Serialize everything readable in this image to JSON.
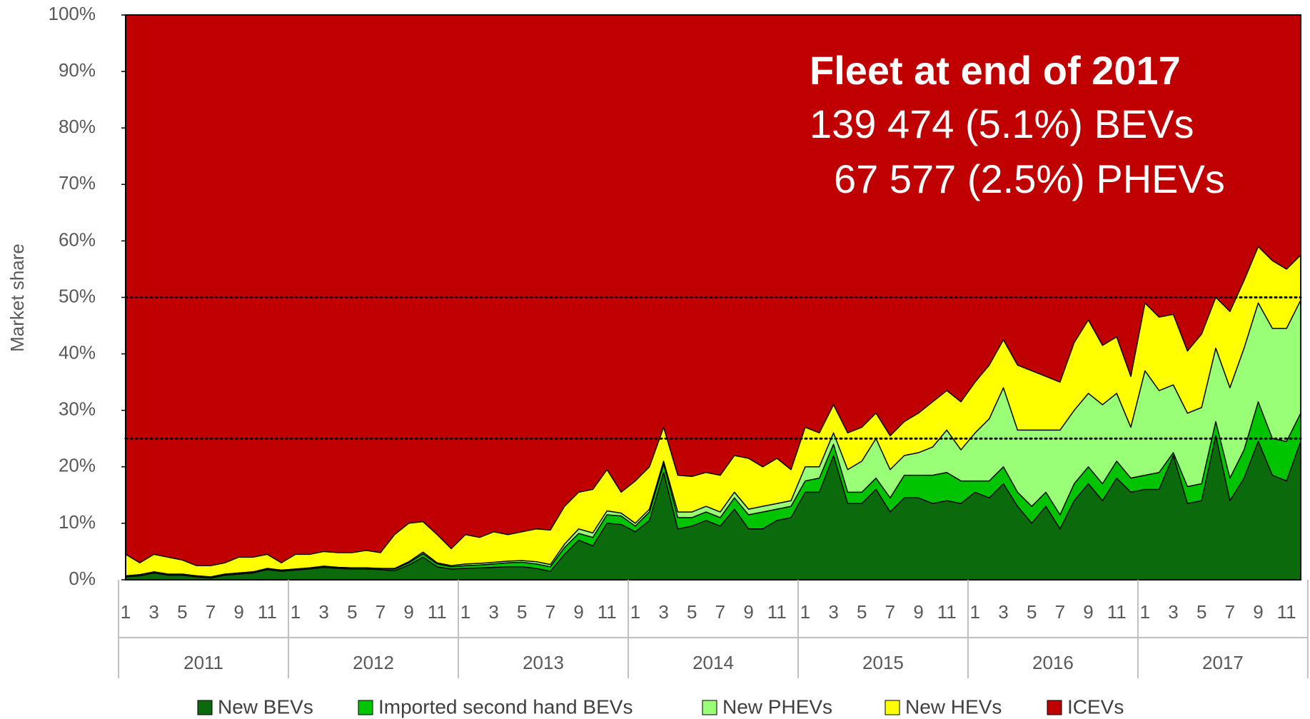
{
  "chart_data": {
    "type": "stacked_area",
    "y_label": "Market share",
    "annotation": {
      "title": "Fleet at end of 2017",
      "lines": [
        "139 474 (5.1%) BEVs",
        "67 577 (2.5%) PHEVs"
      ]
    },
    "categories": [
      "1",
      null,
      "3",
      null,
      "5",
      null,
      "7",
      null,
      "9",
      null,
      "11",
      null,
      "1",
      null,
      "3",
      null,
      "5",
      null,
      "7",
      null,
      "9",
      null,
      "11",
      null,
      "1",
      null,
      "3",
      null,
      "5",
      null,
      "7",
      null,
      "9",
      null,
      "11",
      null,
      "1",
      null,
      "3",
      null,
      "5",
      null,
      "7",
      null,
      "9",
      null,
      "11",
      null,
      "1",
      null,
      "3",
      null,
      "5",
      null,
      "7",
      null,
      "9",
      null,
      "11",
      null,
      "1",
      null,
      "3",
      null,
      "5",
      null,
      "7",
      null,
      "9",
      null,
      "11",
      null,
      "1",
      null,
      "3",
      null,
      "5",
      null,
      "7",
      null,
      "9",
      null,
      "11",
      null
    ],
    "x_groups": [
      "2011",
      "2012",
      "2013",
      "2014",
      "2015",
      "2016",
      "2017"
    ],
    "series": [
      {
        "name": "New BEVs",
        "color": "#0b6a0b",
        "values": [
          0.5,
          0.7,
          1.2,
          0.8,
          0.8,
          0.5,
          0.3,
          0.8,
          1.0,
          1.2,
          1.8,
          1.5,
          1.7,
          1.9,
          2.2,
          2.0,
          1.9,
          1.9,
          1.8,
          1.6,
          2.6,
          4.0,
          2.3,
          1.9,
          2.0,
          2.1,
          2.2,
          2.3,
          2.3,
          2.0,
          1.5,
          4.5,
          7,
          6,
          10,
          9.8,
          8.5,
          10.5,
          19,
          9,
          9.5,
          10.5,
          9.5,
          12.5,
          9,
          9,
          10.5,
          11,
          15.5,
          15.5,
          22,
          13.5,
          13.5,
          16,
          12,
          14.5,
          14.5,
          13.5,
          14,
          13.5,
          15.5,
          14.5,
          17,
          13,
          10,
          13,
          9,
          14,
          17,
          14,
          18,
          15.5,
          16,
          16,
          22,
          13.5,
          14,
          25.5,
          14,
          18,
          24.5,
          18.5,
          17.5,
          24.5
        ]
      },
      {
        "name": "Imported second hand BEVs",
        "color": "#00c400",
        "values": [
          0.2,
          0.2,
          0.2,
          0.2,
          0.2,
          0.2,
          0.2,
          0.2,
          0.2,
          0.2,
          0.2,
          0.2,
          0.2,
          0.2,
          0.2,
          0.2,
          0.2,
          0.2,
          0.2,
          0.3,
          0.4,
          0.6,
          0.5,
          0.4,
          0.5,
          0.5,
          0.6,
          0.7,
          0.8,
          0.8,
          0.8,
          1.2,
          1.2,
          1.5,
          1.5,
          1.5,
          1,
          1.5,
          1.5,
          2,
          1.5,
          1.5,
          1.5,
          2,
          2.5,
          3,
          2,
          2,
          2,
          2.5,
          2,
          2,
          2,
          2,
          2.5,
          4,
          4,
          5,
          5,
          4,
          2,
          3,
          3,
          2.5,
          3,
          2.5,
          2.5,
          3,
          3,
          3,
          3,
          2.5,
          2.5,
          3,
          0.5,
          3,
          3,
          2.5,
          4,
          5,
          7,
          6.5,
          7,
          5
        ]
      },
      {
        "name": "New PHEVs",
        "color": "#99ff77",
        "values": [
          0,
          0,
          0,
          0,
          0,
          0,
          0,
          0,
          0,
          0,
          0,
          0,
          0,
          0,
          0,
          0,
          0,
          0,
          0,
          0.1,
          0.2,
          0.3,
          0.2,
          0.2,
          0.3,
          0.3,
          0.3,
          0.3,
          0.3,
          0.4,
          0.4,
          0.6,
          0.8,
          0.8,
          0.7,
          0.5,
          0.5,
          0.5,
          0.5,
          1,
          1,
          1,
          1,
          1,
          1,
          1,
          1,
          1,
          2.5,
          2,
          2,
          4,
          5.5,
          7,
          5,
          3.5,
          4,
          5,
          7.5,
          5.5,
          8.5,
          11,
          14,
          11,
          13.5,
          11,
          15,
          13,
          13,
          14,
          12,
          9,
          18.5,
          14.5,
          12,
          13,
          13.5,
          13,
          16,
          18,
          17.5,
          19.5,
          20,
          20
        ]
      },
      {
        "name": "New HEVs",
        "color": "#ffff00",
        "values": [
          3.8,
          2.1,
          3.1,
          3.0,
          2.5,
          1.8,
          2.0,
          2.0,
          2.8,
          2.6,
          2.5,
          1.3,
          2.6,
          2.4,
          2.6,
          2.6,
          2.7,
          3.1,
          2.8,
          6.0,
          6.8,
          5.4,
          5.0,
          3.0,
          5.2,
          4.6,
          5.4,
          4.7,
          5.1,
          5.8,
          6.1,
          6.7,
          6.5,
          7.7,
          7.3,
          3.7,
          7.5,
          7.5,
          6,
          6.5,
          6.3,
          6,
          6.5,
          6.5,
          9,
          7,
          8,
          5.5,
          7,
          6,
          5,
          6.5,
          6,
          4.5,
          6,
          6,
          7,
          8,
          7,
          8.5,
          9,
          9.5,
          8.5,
          11.5,
          10.5,
          9.5,
          8.5,
          12,
          13,
          10.5,
          10,
          9,
          12,
          13,
          12.5,
          11,
          13,
          9,
          13.5,
          12,
          10,
          12,
          10.5,
          8
        ]
      },
      {
        "name": "ICEVs",
        "color": "#c00000",
        "values": [
          95.5,
          97,
          95.5,
          96,
          96.5,
          97.5,
          97.5,
          97,
          96,
          96,
          95.5,
          97,
          95.5,
          95.5,
          95,
          95.2,
          95.2,
          94.8,
          95.2,
          92,
          90,
          89.7,
          92,
          94.5,
          92,
          92.5,
          91.5,
          92,
          91.5,
          91,
          91.2,
          87,
          84.5,
          84,
          80.5,
          84.5,
          82.5,
          80,
          73,
          81.5,
          81.7,
          81,
          81.5,
          78,
          78.5,
          80,
          78.5,
          80.5,
          73,
          74,
          69,
          74,
          73,
          70.5,
          74.5,
          72,
          70.5,
          68.5,
          66.5,
          68.5,
          65,
          62,
          57.5,
          62,
          63,
          64,
          65,
          58,
          54,
          58.5,
          57,
          64,
          51,
          53.5,
          53,
          59.5,
          56.5,
          50,
          52.5,
          47,
          41,
          43.5,
          45,
          42.5
        ]
      }
    ],
    "ylim": [
      0,
      100
    ],
    "yticks": [
      {
        "value": 0,
        "label": "0%"
      },
      {
        "value": 10,
        "label": "10%"
      },
      {
        "value": 20,
        "label": "20%"
      },
      {
        "value": 30,
        "label": "30%"
      },
      {
        "value": 40,
        "label": "40%"
      },
      {
        "value": 50,
        "label": "50%"
      },
      {
        "value": 60,
        "label": "60%"
      },
      {
        "value": 70,
        "label": "70%"
      },
      {
        "value": 80,
        "label": "80%"
      },
      {
        "value": 90,
        "label": "90%"
      },
      {
        "value": 100,
        "label": "100%"
      }
    ],
    "reference_lines": [
      25,
      50
    ],
    "legend": "bottom"
  }
}
